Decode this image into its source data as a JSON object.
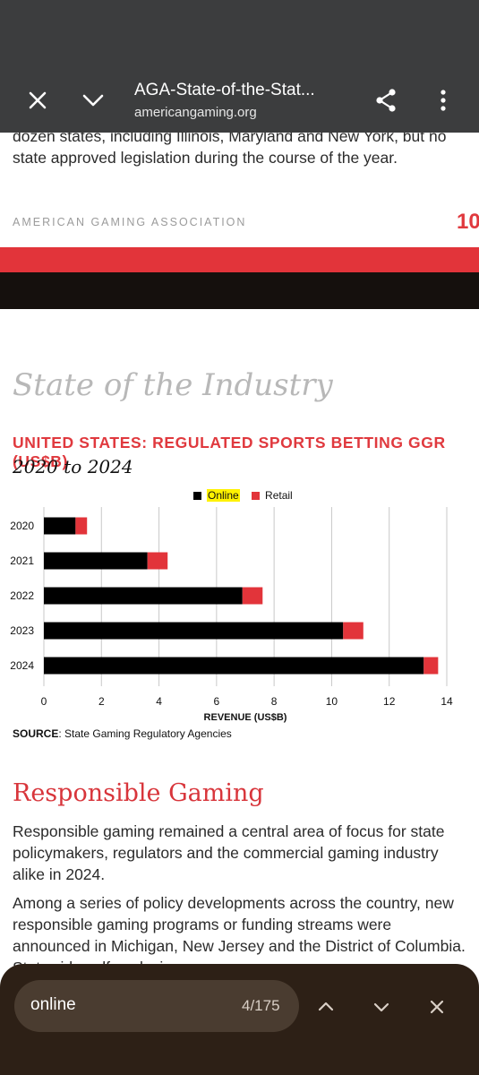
{
  "browser": {
    "title": "AGA-State-of-the-Stat...",
    "url": "americangaming.org"
  },
  "document": {
    "top_text": "dozen states, including Illinois, Maryland and New York, but no state approved legislation during the course of the year.",
    "org_label": "AMERICAN GAMING ASSOCIATION",
    "page_number": "10",
    "section_title": "State of the Industry",
    "chart_heading": "UNITED STATES: REGULATED SPORTS BETTING GGR (US$B)",
    "chart_subheading": "2020 to 2024",
    "legend": {
      "online": "Online",
      "retail": "Retail"
    },
    "source_label": "SOURCE",
    "source_text": ": State Gaming Regulatory Agencies",
    "rg_title": "Responsible Gaming",
    "paragraph1": "Responsible gaming remained a central area of focus for state policymakers, regulators and the commercial gaming industry alike in 2024.",
    "paragraph2": "Among a series of policy developments across the country, new responsible gaming programs or funding streams were announced in Michigan, New Jersey and the District of Columbia. Statewide self-exclusion programs were"
  },
  "chart_data": {
    "type": "bar",
    "orientation": "horizontal",
    "stacked": true,
    "categories": [
      "2020",
      "2021",
      "2022",
      "2023",
      "2024"
    ],
    "series": [
      {
        "name": "Online",
        "color": "#000000",
        "values": [
          1.1,
          3.6,
          6.9,
          10.4,
          13.2
        ]
      },
      {
        "name": "Retail",
        "color": "#e2343a",
        "values": [
          0.4,
          0.7,
          0.7,
          0.7,
          0.5
        ]
      }
    ],
    "xlabel": "REVENUE (US$B)",
    "xlim": [
      0,
      14
    ],
    "xticks": [
      "0",
      "2",
      "4",
      "6",
      "8",
      "10",
      "12",
      "14"
    ],
    "grid": true,
    "legend_position": "top-right"
  },
  "find_bar": {
    "query": "online",
    "count": "4/175"
  },
  "colors": {
    "accent_red": "#e2343a",
    "toolbar": "#3c3d3e",
    "findbar": "#2d2016"
  }
}
